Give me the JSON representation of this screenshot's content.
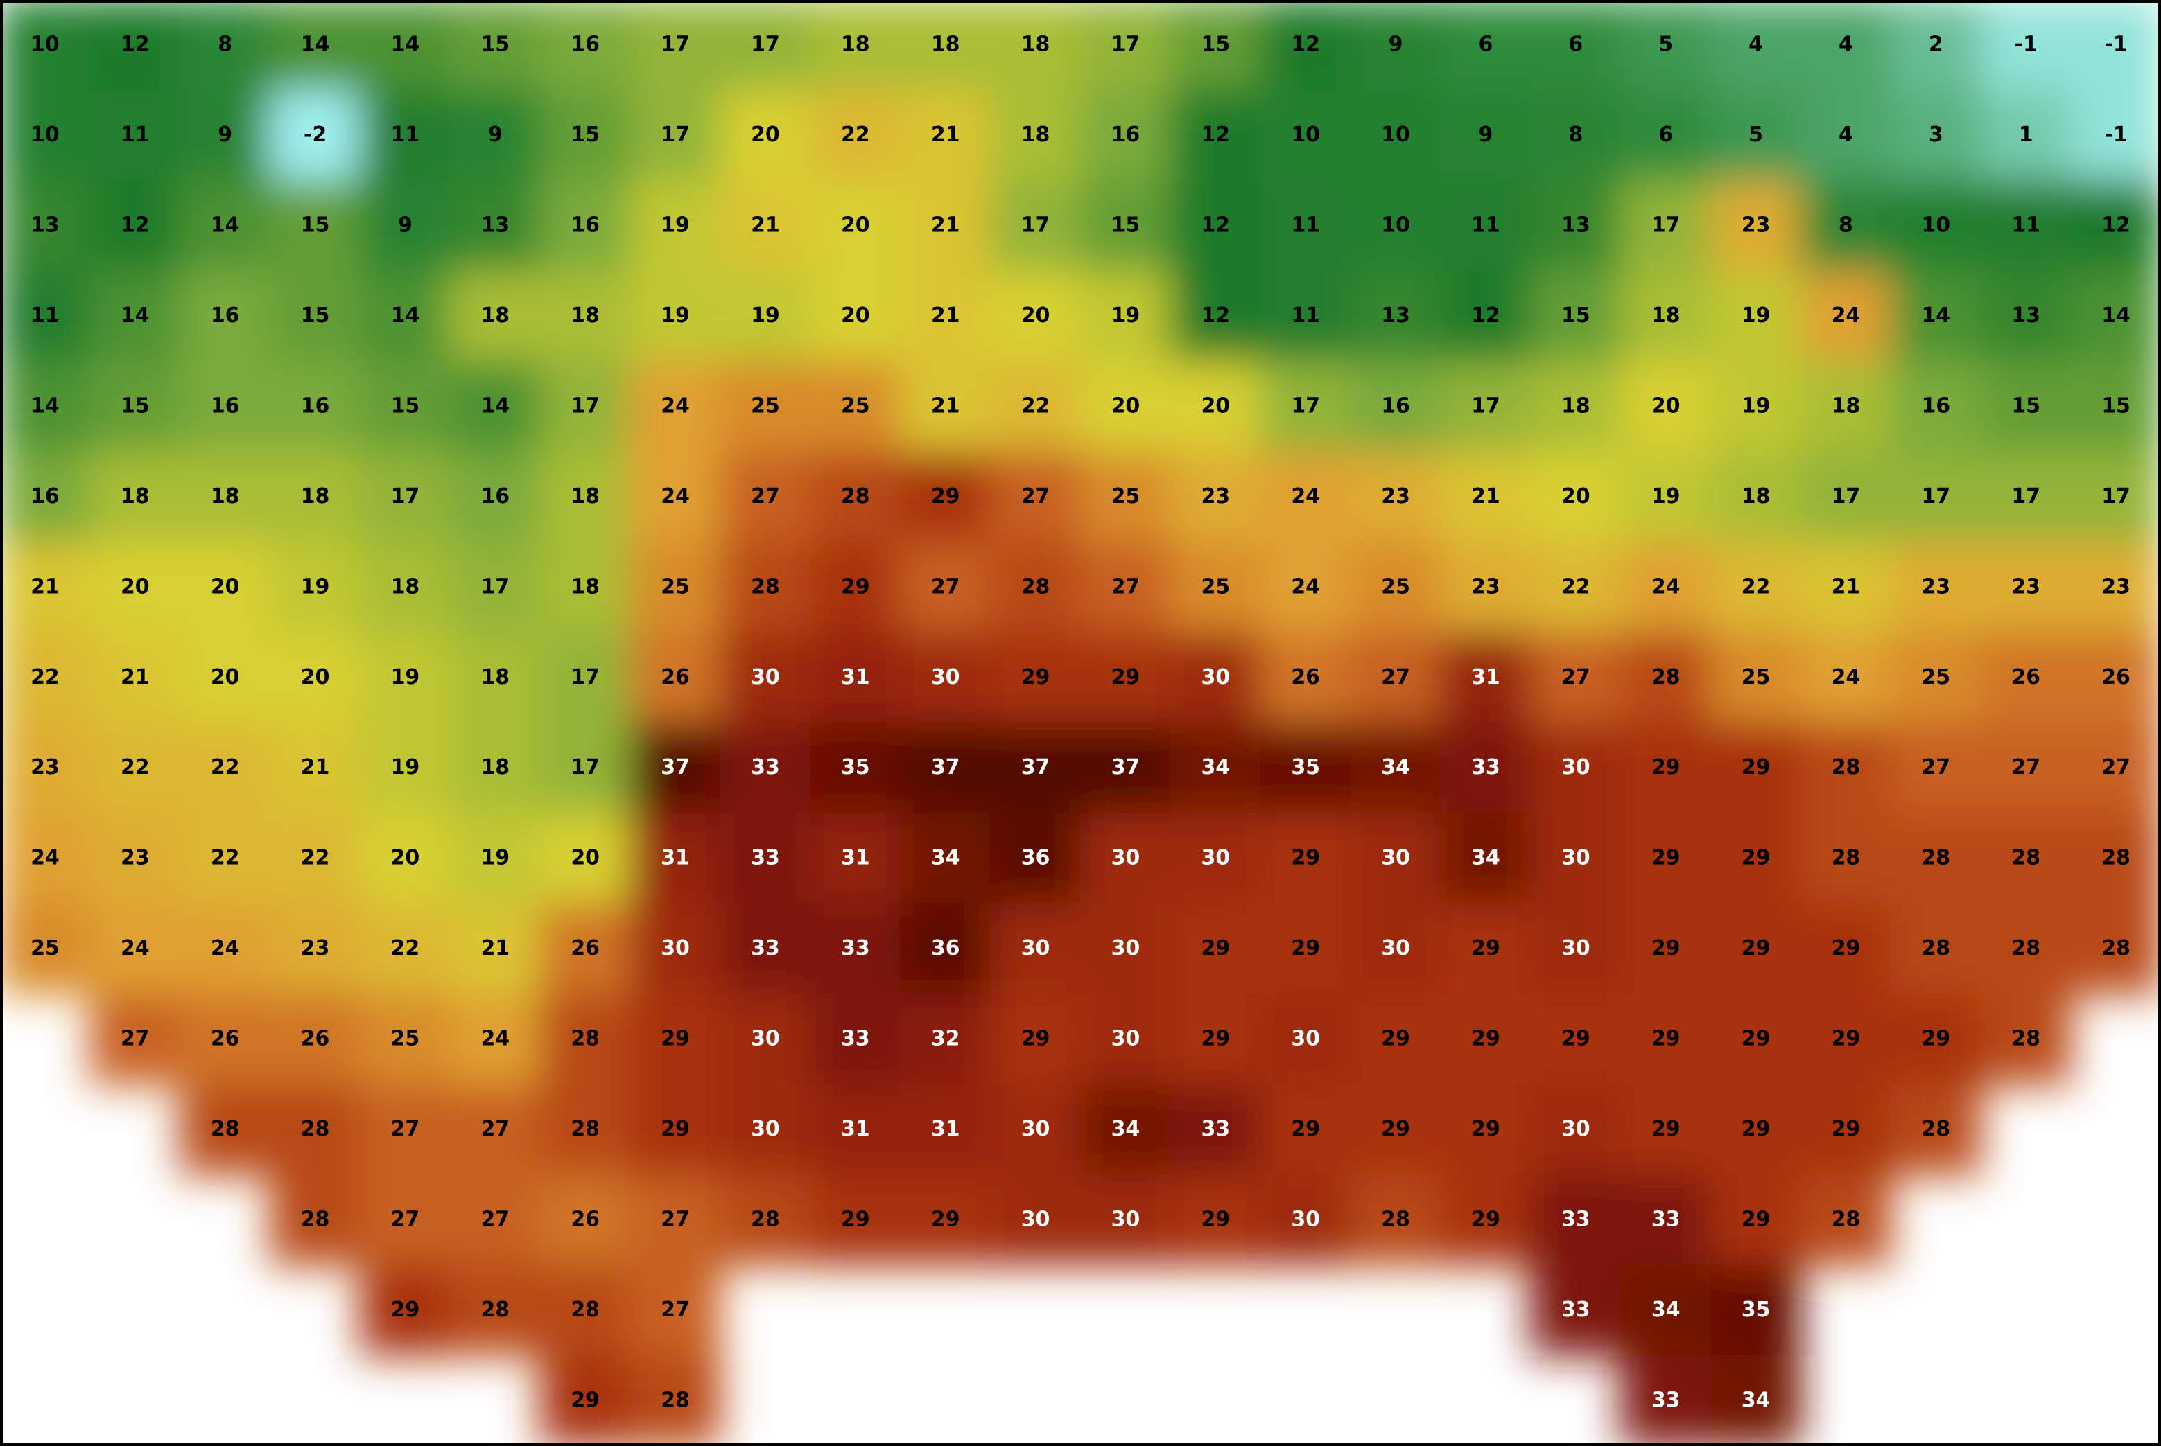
{
  "rows": [
    [
      10,
      12,
      8,
      14,
      14,
      15,
      16,
      17,
      17,
      18,
      18,
      18,
      17,
      15,
      12,
      9,
      6,
      6,
      5,
      4,
      4,
      2,
      -1,
      -1
    ],
    [
      10,
      11,
      9,
      -2,
      11,
      9,
      15,
      17,
      20,
      22,
      21,
      18,
      16,
      12,
      10,
      10,
      9,
      8,
      6,
      5,
      4,
      3,
      1,
      -1
    ],
    [
      13,
      12,
      14,
      15,
      9,
      13,
      16,
      19,
      21,
      20,
      21,
      17,
      15,
      12,
      11,
      10,
      11,
      13,
      17,
      23,
      8,
      10,
      11,
      12
    ],
    [
      11,
      14,
      16,
      15,
      14,
      18,
      18,
      19,
      19,
      20,
      21,
      20,
      19,
      12,
      11,
      13,
      12,
      15,
      18,
      19,
      24,
      14,
      13,
      14
    ],
    [
      14,
      15,
      16,
      16,
      15,
      14,
      17,
      24,
      25,
      25,
      21,
      22,
      20,
      20,
      17,
      16,
      17,
      18,
      20,
      19,
      18,
      16,
      15,
      15
    ],
    [
      16,
      18,
      18,
      18,
      17,
      16,
      18,
      24,
      27,
      28,
      29,
      27,
      25,
      23,
      24,
      23,
      21,
      20,
      19,
      18,
      17,
      17,
      17,
      17
    ],
    [
      21,
      20,
      20,
      19,
      18,
      17,
      18,
      25,
      28,
      29,
      27,
      28,
      27,
      25,
      24,
      25,
      23,
      22,
      24,
      22,
      21,
      23,
      23,
      23
    ],
    [
      22,
      21,
      20,
      20,
      19,
      18,
      17,
      26,
      30,
      31,
      30,
      29,
      29,
      30,
      26,
      27,
      31,
      27,
      28,
      25,
      24,
      25,
      26,
      26
    ],
    [
      23,
      22,
      22,
      21,
      19,
      18,
      17,
      37,
      33,
      35,
      37,
      37,
      37,
      34,
      35,
      34,
      33,
      30,
      29,
      29,
      28,
      27,
      27,
      27
    ],
    [
      24,
      23,
      22,
      22,
      20,
      19,
      20,
      31,
      33,
      31,
      34,
      36,
      30,
      30,
      29,
      30,
      34,
      30,
      29,
      29,
      28,
      28,
      28,
      28
    ],
    [
      25,
      24,
      24,
      23,
      22,
      21,
      26,
      30,
      33,
      33,
      36,
      30,
      30,
      29,
      29,
      30,
      29,
      30,
      29,
      29,
      29,
      28,
      28,
      28
    ],
    [
      null,
      27,
      26,
      26,
      25,
      24,
      28,
      29,
      30,
      33,
      32,
      29,
      30,
      29,
      30,
      29,
      29,
      29,
      29,
      29,
      29,
      29,
      28,
      null
    ],
    [
      null,
      null,
      28,
      28,
      27,
      27,
      28,
      29,
      30,
      31,
      31,
      30,
      34,
      33,
      29,
      29,
      29,
      30,
      29,
      29,
      29,
      28,
      null,
      null
    ],
    [
      null,
      null,
      null,
      28,
      27,
      27,
      26,
      27,
      28,
      29,
      29,
      30,
      30,
      29,
      30,
      28,
      29,
      33,
      33,
      29,
      28,
      null,
      null,
      null
    ],
    [
      null,
      null,
      null,
      null,
      29,
      28,
      28,
      27,
      null,
      null,
      null,
      null,
      null,
      null,
      null,
      null,
      null,
      33,
      34,
      35,
      null,
      null,
      null,
      null
    ],
    [
      null,
      null,
      null,
      null,
      null,
      null,
      29,
      28,
      null,
      null,
      null,
      null,
      null,
      null,
      null,
      null,
      null,
      null,
      33,
      34,
      null,
      null,
      null,
      null
    ]
  ]
}
